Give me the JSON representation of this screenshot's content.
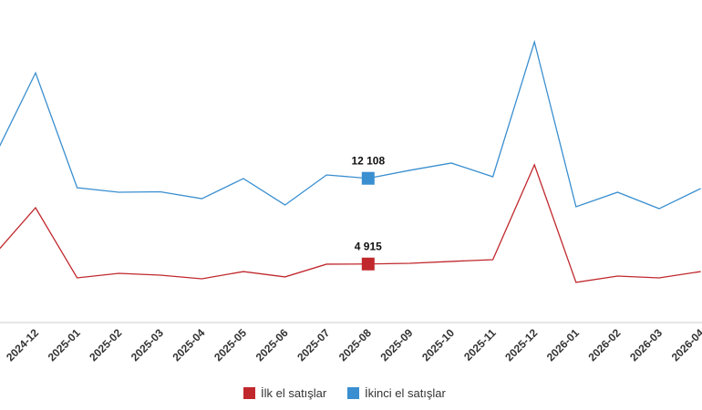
{
  "chart_data": {
    "type": "line",
    "categories": [
      null,
      "2024-12",
      "2025-01",
      "2025-02",
      "2025-03",
      "2025-04",
      "2025-05",
      "2025-06",
      "2025-07",
      "2025-08",
      "2025-09",
      "2025-10",
      "2025-11",
      "2025-12",
      "2026-01",
      "2026-02",
      "2026-03",
      "2026-04"
    ],
    "series": [
      {
        "name": "İlk el satışlar",
        "color": "#c0282d",
        "values": [
          5660,
          9640,
          3750,
          4130,
          3980,
          3670,
          4280,
          3830,
          4900,
          4915,
          4970,
          5130,
          5280,
          13240,
          3370,
          3900,
          3750,
          4280
        ],
        "value_labels": [
          null,
          null,
          null,
          null,
          null,
          null,
          null,
          null,
          null,
          "4 915",
          null,
          null,
          null,
          null,
          null,
          null,
          null,
          null
        ]
      },
      {
        "name": "İkinci el satışlar",
        "color": "#3a8fd0",
        "values": [
          13850,
          20960,
          11320,
          10940,
          10980,
          10400,
          12090,
          9870,
          12390,
          12108,
          12780,
          13390,
          12240,
          23560,
          9720,
          10940,
          9560,
          11250
        ],
        "value_labels": [
          null,
          null,
          null,
          null,
          null,
          null,
          null,
          null,
          null,
          "12 108",
          null,
          null,
          null,
          null,
          null,
          null,
          null,
          null
        ]
      }
    ],
    "ylim": [
      0,
      27080
    ],
    "legend": "bottom"
  }
}
